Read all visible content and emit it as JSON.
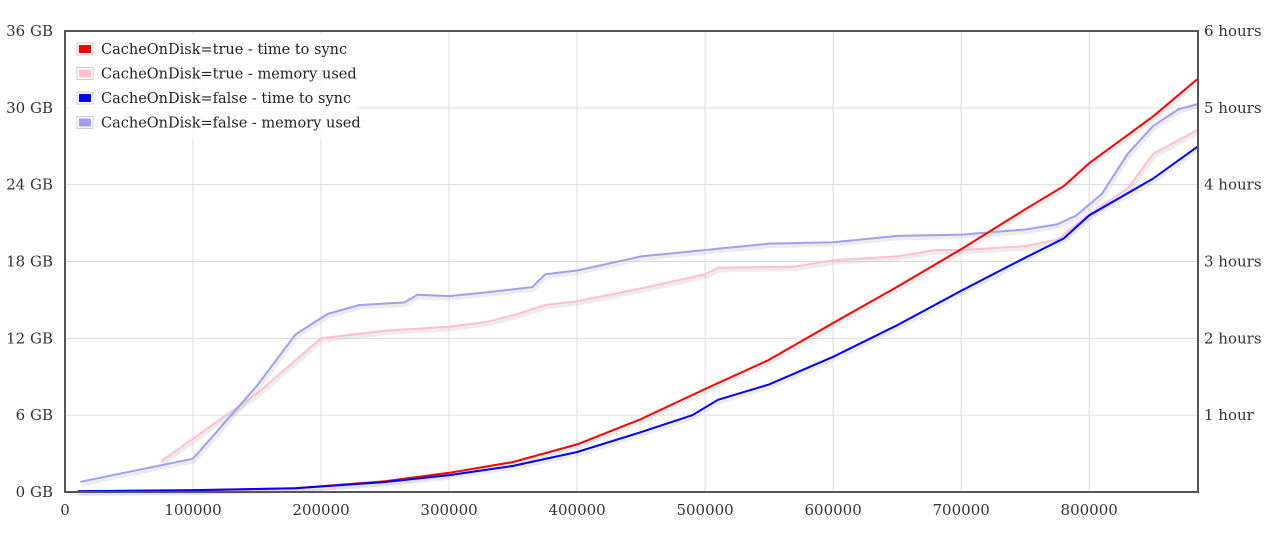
{
  "chart_data": {
    "type": "line",
    "x_ticks": [
      "0",
      "100000",
      "200000",
      "300000",
      "400000",
      "500000",
      "600000",
      "700000",
      "800000"
    ],
    "x_tick_values": [
      0,
      100000,
      200000,
      300000,
      400000,
      500000,
      600000,
      700000,
      800000
    ],
    "xlim": [
      0,
      885000
    ],
    "y_left_ticks": [
      "0 GB",
      "6 GB",
      "12 GB",
      "18 GB",
      "24 GB",
      "30 GB",
      "36 GB"
    ],
    "y_left_tick_values": [
      0,
      6,
      12,
      18,
      24,
      30,
      36
    ],
    "ylim_left": [
      0,
      36
    ],
    "y_right_ticks": [
      "1 hour",
      "2 hours",
      "3 hours",
      "4 hours",
      "5 hours",
      "6 hours"
    ],
    "y_right_tick_values": [
      1,
      2,
      3,
      4,
      5,
      6
    ],
    "ylim_right": [
      0,
      6
    ],
    "grid": true,
    "legend_position": "top-left",
    "series": [
      {
        "name": "CacheOnDisk=true - time to sync",
        "color": "#ff0000",
        "axis": "right",
        "x": [
          10000,
          100000,
          180000,
          250000,
          300000,
          350000,
          400000,
          450000,
          500000,
          550000,
          600000,
          650000,
          700000,
          750000,
          780000,
          800000,
          850000,
          885000
        ],
        "y": [
          0.01,
          0.02,
          0.05,
          0.14,
          0.25,
          0.39,
          0.62,
          0.95,
          1.34,
          1.72,
          2.2,
          2.67,
          3.16,
          3.68,
          3.98,
          4.28,
          4.89,
          5.38
        ]
      },
      {
        "name": "CacheOnDisk=true - memory used",
        "color": "#ffc0cb",
        "axis": "left",
        "x": [
          75000,
          150000,
          200000,
          250000,
          300000,
          330000,
          350000,
          375000,
          400000,
          450000,
          500000,
          510000,
          570000,
          600000,
          650000,
          680000,
          700000,
          750000,
          775000,
          800000,
          830000,
          850000,
          885000
        ],
        "y": [
          2.4,
          7.7,
          12.0,
          12.6,
          12.9,
          13.3,
          13.8,
          14.6,
          14.9,
          15.9,
          17.0,
          17.5,
          17.6,
          18.1,
          18.4,
          18.9,
          18.9,
          19.2,
          19.7,
          21.7,
          23.7,
          26.4,
          28.3
        ]
      },
      {
        "name": "CacheOnDisk=false - time to sync",
        "color": "#0000ff",
        "axis": "right",
        "x": [
          10000,
          100000,
          180000,
          250000,
          300000,
          350000,
          400000,
          450000,
          490000,
          510000,
          550000,
          600000,
          650000,
          700000,
          750000,
          780000,
          800000,
          850000,
          885000
        ],
        "y": [
          0.01,
          0.025,
          0.05,
          0.13,
          0.22,
          0.34,
          0.52,
          0.78,
          1.0,
          1.2,
          1.4,
          1.76,
          2.17,
          2.62,
          3.05,
          3.3,
          3.6,
          4.08,
          4.5
        ]
      },
      {
        "name": "CacheOnDisk=false - memory used",
        "color": "#a0a0f0",
        "axis": "left",
        "x": [
          12000,
          100000,
          150000,
          180000,
          205000,
          230000,
          265000,
          275000,
          300000,
          330000,
          365000,
          375000,
          400000,
          450000,
          500000,
          550000,
          600000,
          650000,
          700000,
          750000,
          775000,
          790000,
          810000,
          830000,
          850000,
          870000,
          885000
        ],
        "y": [
          0.8,
          2.6,
          8.3,
          12.3,
          13.9,
          14.6,
          14.8,
          15.4,
          15.3,
          15.6,
          16.0,
          17.0,
          17.3,
          18.4,
          18.9,
          19.4,
          19.5,
          20.0,
          20.1,
          20.5,
          20.9,
          21.6,
          23.3,
          26.4,
          28.6,
          29.9,
          30.3
        ]
      }
    ]
  }
}
